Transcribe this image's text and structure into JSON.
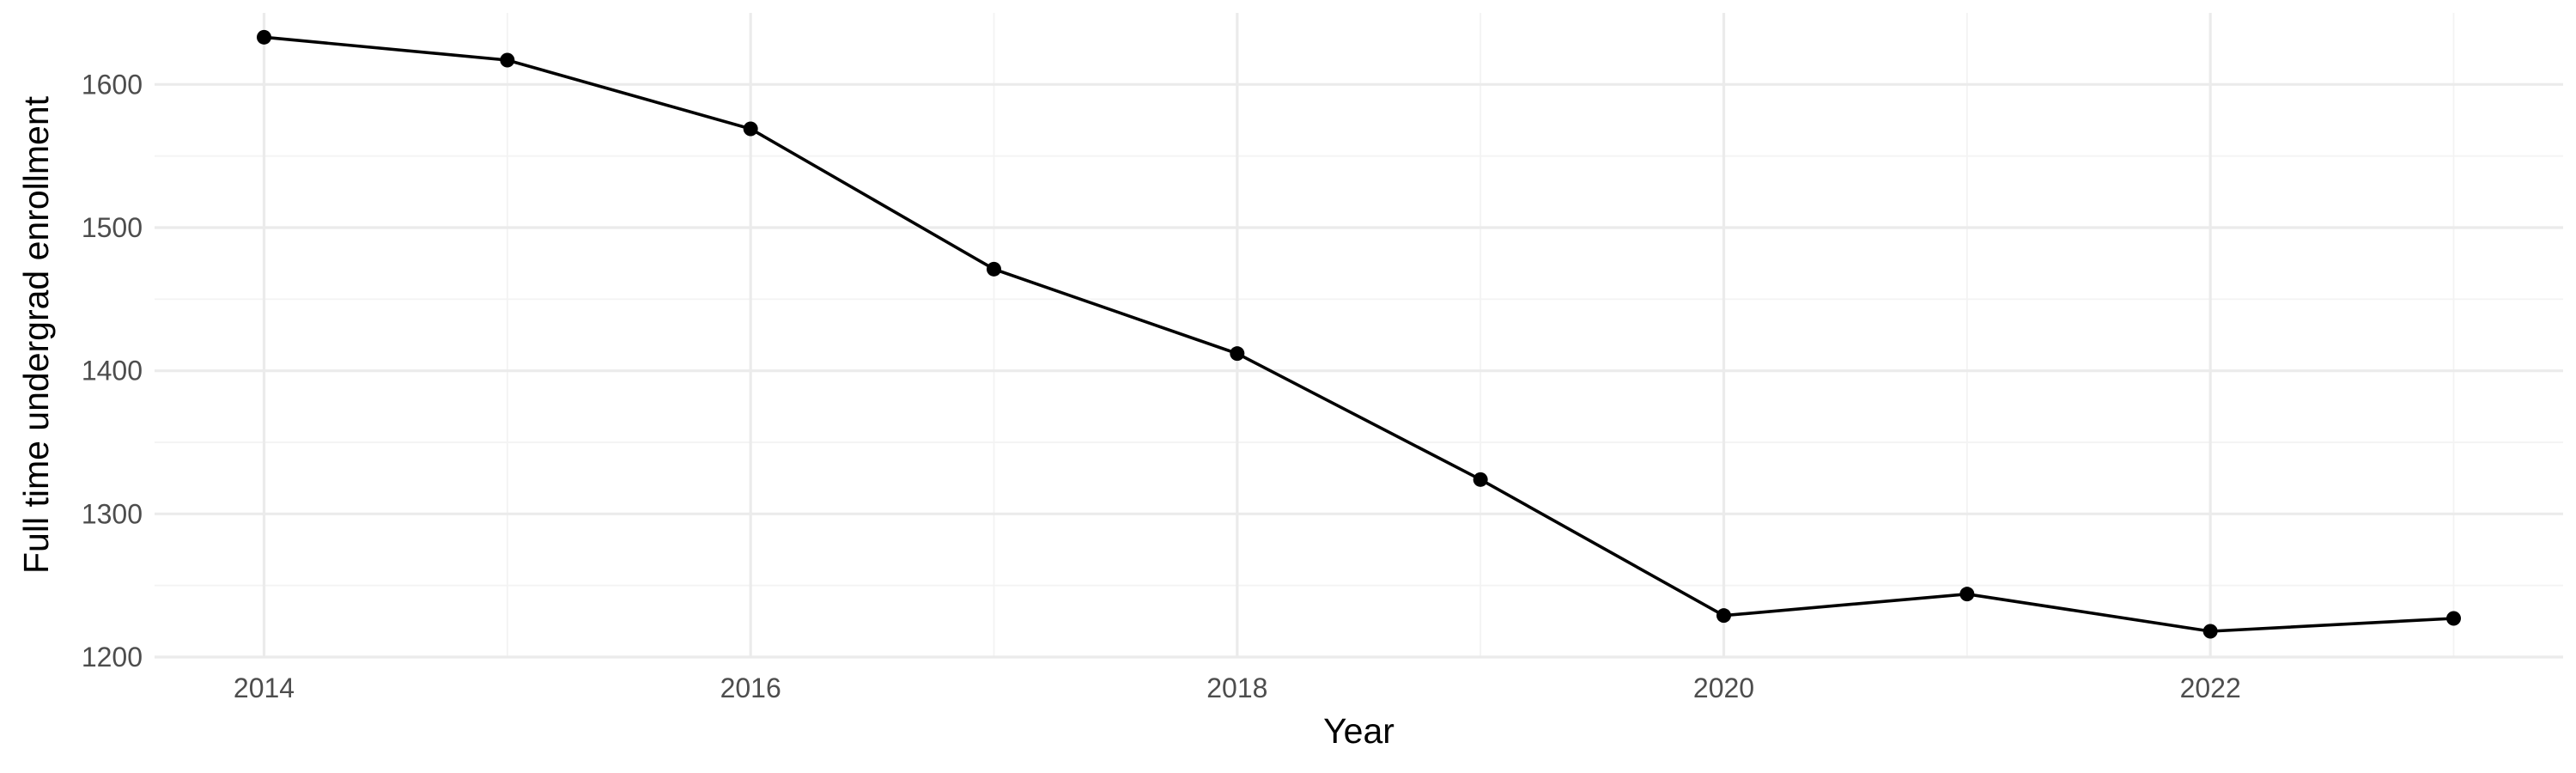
{
  "chart_data": {
    "type": "line",
    "title": "",
    "xlabel": "Year",
    "ylabel": "Full time undergrad enrollment",
    "x": [
      2014,
      2015,
      2016,
      2017,
      2018,
      2019,
      2020,
      2021,
      2022,
      2023
    ],
    "series": [
      {
        "values": [
          1633,
          1617,
          1569,
          1471,
          1412,
          1324,
          1229,
          1244,
          1218,
          1227
        ],
        "color": "#000000"
      }
    ],
    "xlim": [
      2013.55,
      2023.45
    ],
    "ylim": [
      1200,
      1650
    ],
    "x_ticks": [
      2014,
      2016,
      2018,
      2020,
      2022
    ],
    "x_tick_labels": [
      "2014",
      "2016",
      "2018",
      "2020",
      "2022"
    ],
    "y_ticks": [
      1200,
      1300,
      1400,
      1500,
      1600
    ],
    "y_tick_labels": [
      "1200",
      "1300",
      "1400",
      "1500",
      "1600"
    ],
    "grid": true,
    "legend": "none",
    "background": "#ffffff",
    "grid_color": "#ebebeb"
  }
}
